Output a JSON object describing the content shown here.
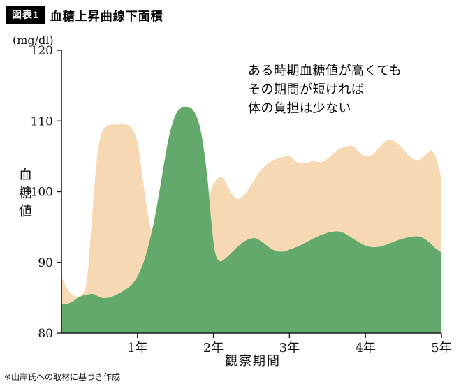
{
  "header": {
    "badge": "図表1",
    "title": "血糖上昇曲線下面積"
  },
  "footnote": "※山岸氏への取材に基づき作成",
  "chart_data": {
    "type": "area",
    "title": "血糖上昇曲線下面積",
    "y_unit": "(mg/dl)",
    "y_axis_title": "血糖値",
    "x_axis_title": "観察期間",
    "xlim": [
      0,
      5
    ],
    "ylim": [
      80,
      120
    ],
    "grid": false,
    "legend": "none",
    "axis_color": "#1a1a1a",
    "y_ticks": [
      {
        "value": 120,
        "label": "120"
      },
      {
        "value": 110,
        "label": "110"
      },
      {
        "value": 100,
        "label": "100"
      },
      {
        "value": 90,
        "label": "90"
      },
      {
        "value": 80,
        "label": "80"
      }
    ],
    "x_ticks": [
      {
        "value": 1,
        "label": "1年"
      },
      {
        "value": 2,
        "label": "2年"
      },
      {
        "value": 3,
        "label": "3年"
      },
      {
        "value": 4,
        "label": "4年"
      },
      {
        "value": 5,
        "label": "5年"
      }
    ],
    "annotation": {
      "lines": [
        "ある時期血糖値が高くても",
        "その期間が短ければ",
        "体の負担は少ない"
      ]
    },
    "series": [
      {
        "name": "beige-area",
        "color": "#f6d8b2",
        "points": [
          [
            0,
            88
          ],
          [
            0.08,
            86.2
          ],
          [
            0.18,
            85.2
          ],
          [
            0.28,
            85.6
          ],
          [
            0.34,
            88
          ],
          [
            0.4,
            96
          ],
          [
            0.46,
            104
          ],
          [
            0.52,
            108
          ],
          [
            0.6,
            109.3
          ],
          [
            0.72,
            109.5
          ],
          [
            0.84,
            109.5
          ],
          [
            0.92,
            109
          ],
          [
            1.0,
            107
          ],
          [
            1.08,
            101
          ],
          [
            1.16,
            95.5
          ],
          [
            1.24,
            92.8
          ],
          [
            1.35,
            92
          ],
          [
            1.5,
            91.8
          ],
          [
            1.65,
            91.8
          ],
          [
            1.8,
            93.5
          ],
          [
            1.9,
            97
          ],
          [
            1.98,
            100.5
          ],
          [
            2.05,
            101.8
          ],
          [
            2.12,
            102
          ],
          [
            2.2,
            100.5
          ],
          [
            2.3,
            99
          ],
          [
            2.4,
            99.5
          ],
          [
            2.5,
            101
          ],
          [
            2.62,
            103
          ],
          [
            2.75,
            104.2
          ],
          [
            2.88,
            104.8
          ],
          [
            3.0,
            105
          ],
          [
            3.08,
            104.3
          ],
          [
            3.18,
            104
          ],
          [
            3.3,
            104.3
          ],
          [
            3.42,
            104.2
          ],
          [
            3.52,
            104.8
          ],
          [
            3.62,
            105.8
          ],
          [
            3.72,
            106.3
          ],
          [
            3.82,
            106.5
          ],
          [
            3.9,
            105.8
          ],
          [
            4.0,
            105
          ],
          [
            4.1,
            105.3
          ],
          [
            4.2,
            106.5
          ],
          [
            4.3,
            107.3
          ],
          [
            4.4,
            107
          ],
          [
            4.5,
            106
          ],
          [
            4.6,
            104.8
          ],
          [
            4.7,
            104.5
          ],
          [
            4.8,
            105.3
          ],
          [
            4.88,
            105.8
          ],
          [
            4.95,
            104
          ],
          [
            5.0,
            101.8
          ]
        ]
      },
      {
        "name": "green-area",
        "color": "#63a96c",
        "points": [
          [
            0,
            84
          ],
          [
            0.12,
            84.3
          ],
          [
            0.22,
            85
          ],
          [
            0.32,
            85.4
          ],
          [
            0.42,
            85.5
          ],
          [
            0.52,
            85
          ],
          [
            0.62,
            85
          ],
          [
            0.72,
            85.4
          ],
          [
            0.82,
            86
          ],
          [
            0.92,
            86.8
          ],
          [
            1.0,
            88
          ],
          [
            1.08,
            90
          ],
          [
            1.16,
            93
          ],
          [
            1.24,
            97
          ],
          [
            1.32,
            102
          ],
          [
            1.4,
            107
          ],
          [
            1.48,
            110.3
          ],
          [
            1.56,
            111.8
          ],
          [
            1.64,
            112
          ],
          [
            1.72,
            111.7
          ],
          [
            1.8,
            110
          ],
          [
            1.86,
            107
          ],
          [
            1.92,
            102
          ],
          [
            1.97,
            96
          ],
          [
            2.02,
            91.5
          ],
          [
            2.08,
            90.2
          ],
          [
            2.15,
            90.5
          ],
          [
            2.25,
            91.5
          ],
          [
            2.35,
            92.5
          ],
          [
            2.45,
            93.2
          ],
          [
            2.55,
            93.4
          ],
          [
            2.65,
            92.8
          ],
          [
            2.78,
            91.8
          ],
          [
            2.9,
            91.5
          ],
          [
            3.0,
            91.8
          ],
          [
            3.12,
            92.3
          ],
          [
            3.25,
            93
          ],
          [
            3.4,
            93.8
          ],
          [
            3.55,
            94.3
          ],
          [
            3.68,
            94.3
          ],
          [
            3.8,
            93.6
          ],
          [
            3.92,
            92.8
          ],
          [
            4.05,
            92.2
          ],
          [
            4.18,
            92.2
          ],
          [
            4.3,
            92.6
          ],
          [
            4.45,
            93.2
          ],
          [
            4.6,
            93.6
          ],
          [
            4.72,
            93.6
          ],
          [
            4.82,
            93
          ],
          [
            4.92,
            92
          ],
          [
            5.0,
            91.4
          ]
        ]
      }
    ]
  }
}
